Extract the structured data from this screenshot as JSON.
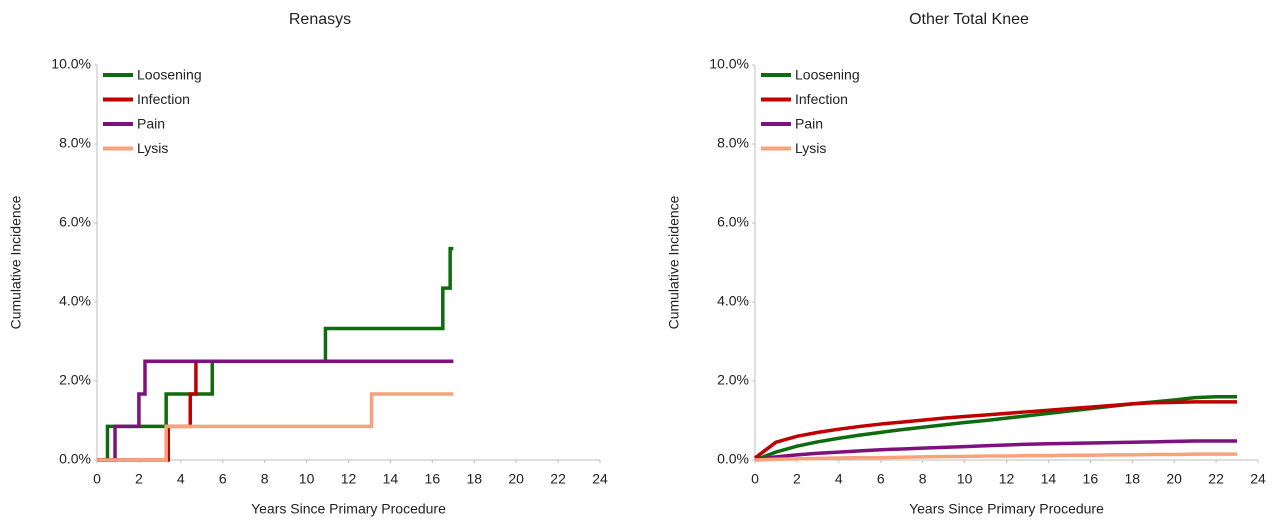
{
  "chart_data": [
    {
      "type": "line",
      "step": true,
      "title": "Renasys",
      "xlabel": "Years Since Primary Procedure",
      "ylabel": "Cumulative Incidence",
      "xlim": [
        0,
        24
      ],
      "xticks": [
        0,
        2,
        4,
        6,
        8,
        10,
        12,
        14,
        16,
        18,
        20,
        22,
        24
      ],
      "ylim": [
        0,
        10
      ],
      "yticks": [
        {
          "value": 0,
          "label": "0.0%"
        },
        {
          "value": 2,
          "label": "2.0%"
        },
        {
          "value": 4,
          "label": "4.0%"
        },
        {
          "value": 6,
          "label": "6.0%"
        },
        {
          "value": 8,
          "label": "8.0%"
        },
        {
          "value": 10,
          "label": "10.0%"
        }
      ],
      "grid": false,
      "legend": "upper left",
      "series": [
        {
          "name": "Loosening",
          "color": "#0e6b0e",
          "x": [
            0,
            0.5,
            3.3,
            5.5,
            10.9,
            16.5,
            16.85,
            17.0
          ],
          "values": [
            0,
            0.85,
            1.67,
            2.5,
            3.33,
            4.35,
            5.35,
            5.35
          ]
        },
        {
          "name": "Infection",
          "color": "#c00000",
          "x": [
            0,
            3.4,
            4.45,
            4.72,
            17.0
          ],
          "values": [
            0,
            0.85,
            1.67,
            2.5,
            2.5
          ]
        },
        {
          "name": "Pain",
          "color": "#7f117f",
          "x": [
            0,
            0.86,
            2.0,
            2.29,
            17.0
          ],
          "values": [
            0,
            0.85,
            1.67,
            2.5,
            2.5
          ]
        },
        {
          "name": "Lysis",
          "color": "#f7a27c",
          "x": [
            0,
            3.3,
            13.1,
            17.0
          ],
          "values": [
            0,
            0.85,
            1.67,
            1.67
          ]
        }
      ]
    },
    {
      "type": "line",
      "step": false,
      "title": "Other Total Knee",
      "xlabel": "Years Since Primary Procedure",
      "ylabel": "Cumulative Incidence",
      "xlim": [
        0,
        24
      ],
      "xticks": [
        0,
        2,
        4,
        6,
        8,
        10,
        12,
        14,
        16,
        18,
        20,
        22,
        24
      ],
      "ylim": [
        0,
        10
      ],
      "yticks": [
        {
          "value": 0,
          "label": "0.0%"
        },
        {
          "value": 2,
          "label": "2.0%"
        },
        {
          "value": 4,
          "label": "4.0%"
        },
        {
          "value": 6,
          "label": "6.0%"
        },
        {
          "value": 8,
          "label": "8.0%"
        },
        {
          "value": 10,
          "label": "10.0%"
        }
      ],
      "grid": false,
      "legend": "upper left",
      "series": [
        {
          "name": "Loosening",
          "color": "#0e6b0e",
          "x": [
            0,
            1,
            2,
            3,
            4,
            5,
            6,
            7,
            8,
            9,
            10,
            11,
            12,
            13,
            14,
            15,
            16,
            17,
            18,
            19,
            20,
            21,
            22,
            23
          ],
          "values": [
            0,
            0.2,
            0.35,
            0.46,
            0.55,
            0.63,
            0.7,
            0.77,
            0.83,
            0.89,
            0.95,
            1.0,
            1.06,
            1.12,
            1.18,
            1.24,
            1.3,
            1.36,
            1.42,
            1.47,
            1.52,
            1.58,
            1.6,
            1.6
          ]
        },
        {
          "name": "Infection",
          "color": "#c00000",
          "x": [
            0,
            1,
            2,
            3,
            4,
            5,
            6,
            7,
            8,
            9,
            10,
            11,
            12,
            13,
            14,
            15,
            16,
            17,
            18,
            19,
            20,
            21,
            22,
            23
          ],
          "values": [
            0.05,
            0.45,
            0.6,
            0.7,
            0.78,
            0.85,
            0.91,
            0.96,
            1.01,
            1.06,
            1.1,
            1.14,
            1.18,
            1.22,
            1.26,
            1.3,
            1.34,
            1.38,
            1.42,
            1.45,
            1.46,
            1.47,
            1.47,
            1.47
          ]
        },
        {
          "name": "Pain",
          "color": "#7f117f",
          "x": [
            0,
            1,
            2,
            3,
            4,
            5,
            6,
            7,
            8,
            9,
            10,
            11,
            12,
            13,
            14,
            15,
            16,
            17,
            18,
            19,
            20,
            21,
            22,
            23
          ],
          "values": [
            0,
            0.08,
            0.13,
            0.17,
            0.2,
            0.23,
            0.26,
            0.28,
            0.3,
            0.32,
            0.34,
            0.36,
            0.38,
            0.4,
            0.41,
            0.42,
            0.43,
            0.44,
            0.45,
            0.46,
            0.47,
            0.48,
            0.48,
            0.48
          ]
        },
        {
          "name": "Lysis",
          "color": "#f7a27c",
          "x": [
            0,
            1,
            2,
            3,
            4,
            5,
            6,
            7,
            8,
            9,
            10,
            11,
            12,
            13,
            14,
            15,
            16,
            17,
            18,
            19,
            20,
            21,
            22,
            23
          ],
          "values": [
            0,
            0.02,
            0.03,
            0.04,
            0.05,
            0.06,
            0.06,
            0.07,
            0.08,
            0.09,
            0.09,
            0.1,
            0.1,
            0.11,
            0.11,
            0.12,
            0.12,
            0.13,
            0.13,
            0.14,
            0.14,
            0.15,
            0.15,
            0.15
          ]
        }
      ]
    }
  ]
}
